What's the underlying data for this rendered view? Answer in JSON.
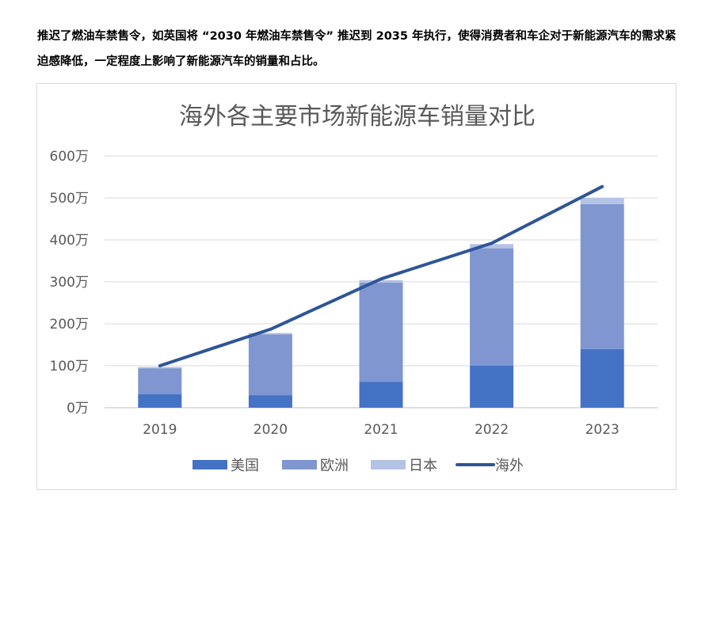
{
  "article": {
    "paragraph": "推迟了燃油车禁售令，如英国将 “2030 年燃油车禁售令” 推迟到 2035 年执行，使得消费者和车企对于新能源汽车的需求紧迫感降低，一定程度上影响了新能源汽车的销量和占比。"
  },
  "chart_data": {
    "type": "bar",
    "stacked": true,
    "title": "海外各主要市场新能源车销量对比",
    "categories": [
      "2019",
      "2020",
      "2021",
      "2022",
      "2023"
    ],
    "y_unit": "万",
    "ylim": [
      0,
      600
    ],
    "yticks": [
      0,
      100,
      200,
      300,
      400,
      500,
      600
    ],
    "ytick_labels": [
      "0万",
      "100万",
      "200万",
      "300万",
      "400万",
      "500万",
      "600万"
    ],
    "grid": true,
    "legend_position": "bottom",
    "series": [
      {
        "name": "美国",
        "type": "bar",
        "color": "#4472c4",
        "values": [
          32,
          30,
          62,
          100,
          140
        ]
      },
      {
        "name": "欧洲",
        "type": "bar",
        "color": "#7f96d1",
        "values": [
          62,
          145,
          236,
          280,
          345
        ]
      },
      {
        "name": "日本",
        "type": "bar",
        "color": "#b4c3e5",
        "values": [
          3,
          3,
          6,
          10,
          15
        ]
      },
      {
        "name": "海外",
        "type": "line",
        "color": "#2f5597",
        "values": [
          100,
          187,
          307,
          392,
          527
        ]
      }
    ]
  }
}
